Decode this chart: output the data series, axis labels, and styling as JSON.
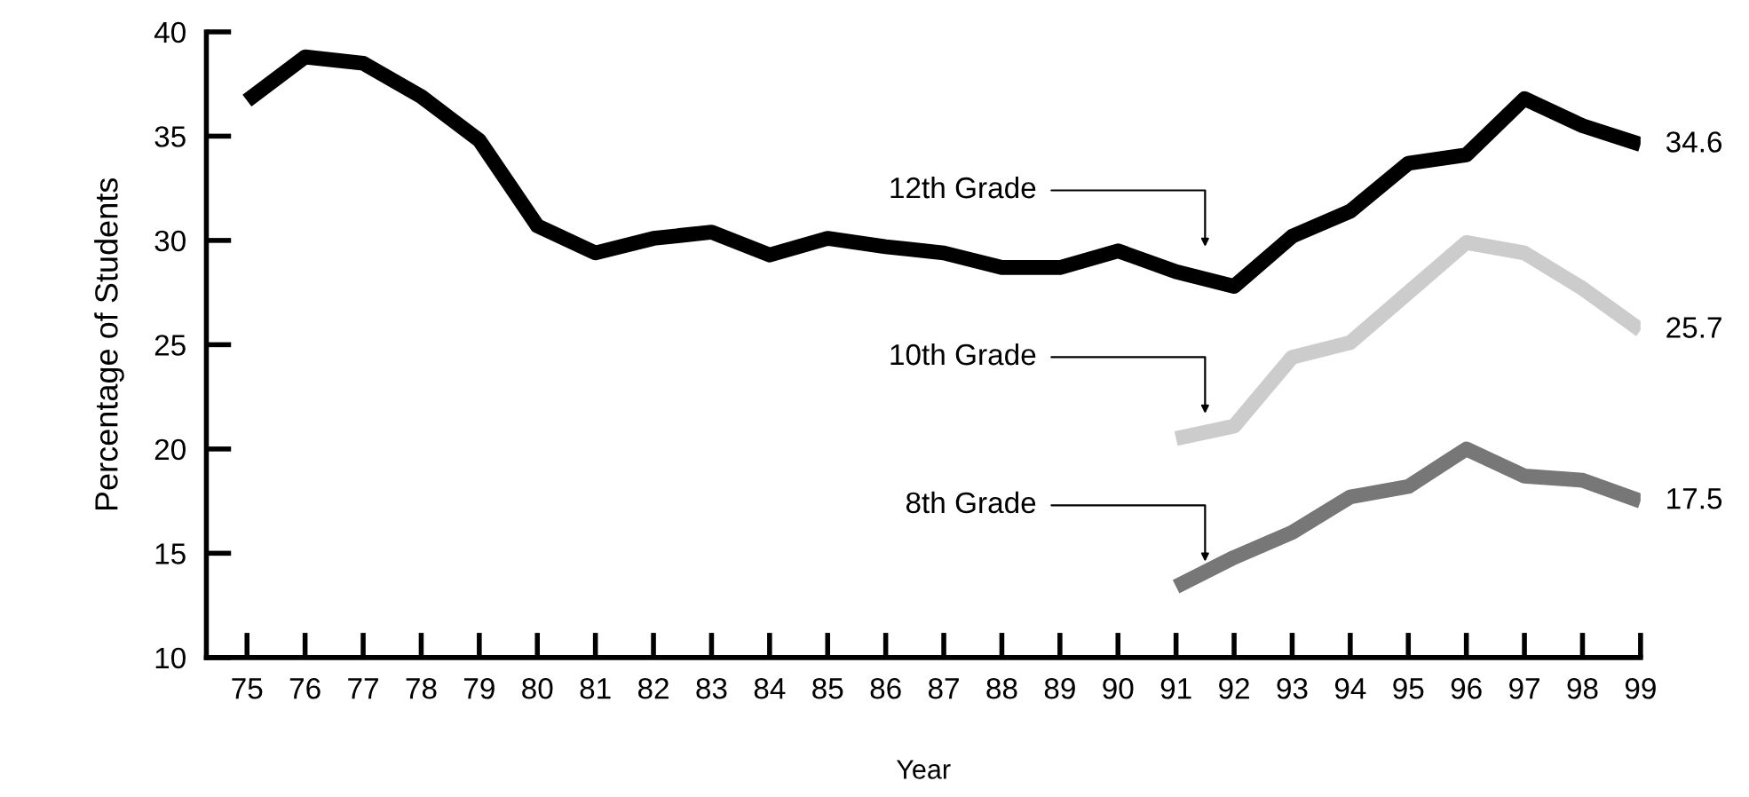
{
  "chart_data": {
    "type": "line",
    "xlabel": "Year",
    "ylabel": "Percentage of Students",
    "categories": [
      "75",
      "76",
      "77",
      "78",
      "79",
      "80",
      "81",
      "82",
      "83",
      "84",
      "85",
      "86",
      "87",
      "88",
      "89",
      "90",
      "91",
      "92",
      "93",
      "94",
      "95",
      "96",
      "97",
      "98",
      "99"
    ],
    "ylim": [
      10,
      40
    ],
    "yticks": [
      10,
      15,
      20,
      25,
      30,
      35,
      40
    ],
    "grid": false,
    "legend": false,
    "marker": "none",
    "line_style": "solid",
    "series": [
      {
        "name": "12th Grade",
        "color": "#000000",
        "values": [
          36.7,
          38.8,
          38.5,
          36.9,
          34.8,
          30.7,
          29.4,
          30.1,
          30.4,
          29.3,
          30.1,
          29.7,
          29.4,
          28.7,
          28.7,
          29.5,
          28.5,
          27.8,
          30.2,
          31.4,
          33.7,
          34.1,
          36.8,
          35.5,
          34.6
        ],
        "value_labels": [
          null,
          null,
          null,
          null,
          null,
          null,
          null,
          null,
          null,
          null,
          null,
          null,
          null,
          null,
          null,
          null,
          null,
          null,
          null,
          null,
          null,
          null,
          null,
          null,
          "34.6"
        ]
      },
      {
        "name": "10th Grade",
        "color": "#cccccc",
        "values": [
          null,
          null,
          null,
          null,
          null,
          null,
          null,
          null,
          null,
          null,
          null,
          null,
          null,
          null,
          null,
          null,
          20.5,
          21.1,
          24.4,
          25.1,
          27.5,
          29.9,
          29.4,
          27.7,
          25.7
        ],
        "value_labels": [
          null,
          null,
          null,
          null,
          null,
          null,
          null,
          null,
          null,
          null,
          null,
          null,
          null,
          null,
          null,
          null,
          null,
          null,
          null,
          null,
          null,
          null,
          null,
          null,
          "25.7"
        ]
      },
      {
        "name": "8th Grade",
        "color": "#777777",
        "values": [
          null,
          null,
          null,
          null,
          null,
          null,
          null,
          null,
          null,
          null,
          null,
          null,
          null,
          null,
          null,
          null,
          13.4,
          14.8,
          16.0,
          17.7,
          18.2,
          20.0,
          18.7,
          18.5,
          17.5
        ],
        "value_labels": [
          null,
          null,
          null,
          null,
          null,
          null,
          null,
          null,
          null,
          null,
          null,
          null,
          null,
          null,
          null,
          null,
          null,
          null,
          null,
          null,
          null,
          null,
          null,
          null,
          "17.5"
        ]
      }
    ]
  }
}
